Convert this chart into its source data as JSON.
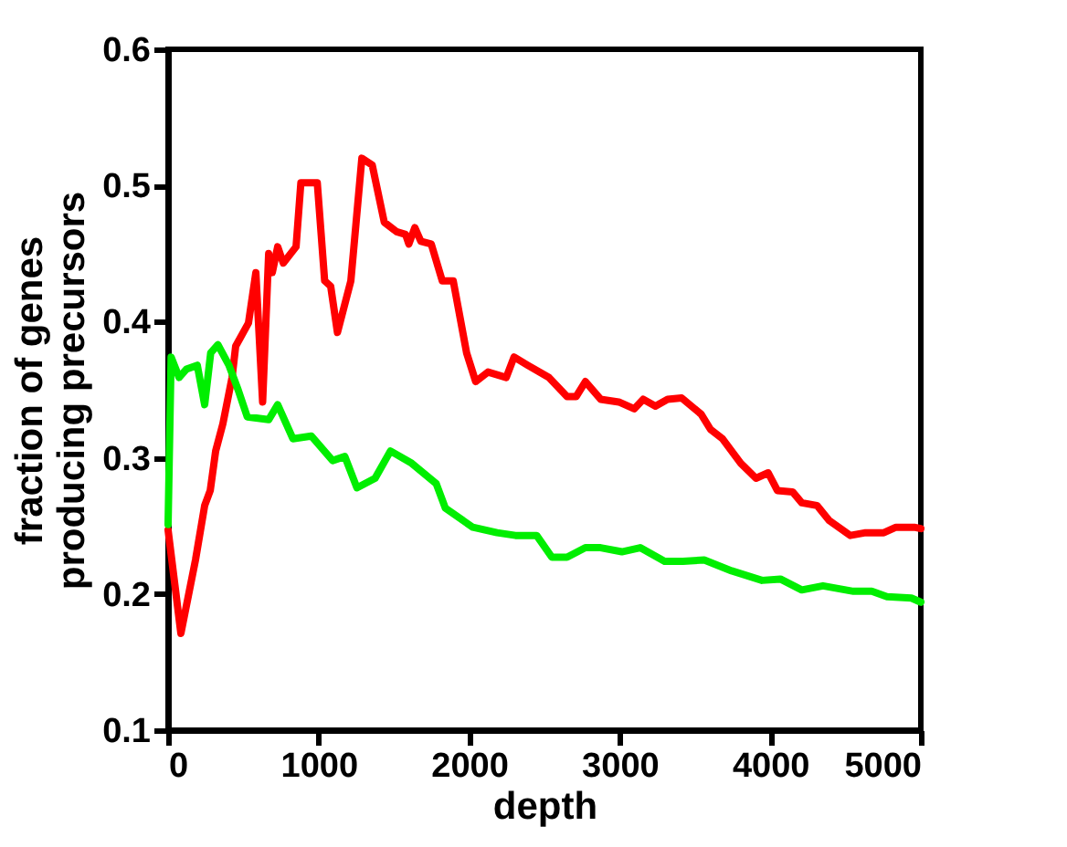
{
  "chart_data": {
    "type": "line",
    "xlabel": "depth",
    "ylabel": "fraction of genes\nproducing precursors",
    "xlim": [
      0,
      5000
    ],
    "xticks": [
      0,
      1000,
      2000,
      3000,
      4000,
      5000
    ],
    "ylim": [
      0.1,
      0.6
    ],
    "yticks": [
      0.1,
      0.2,
      0.3,
      0.4,
      0.5,
      0.6
    ],
    "grid": false,
    "line_style": "solid",
    "marker": "none",
    "series": [
      {
        "color": "#ff0000",
        "x": [
          0,
          85,
          182,
          243,
          280,
          316,
          364,
          425,
          449,
          534,
          583,
          628,
          668,
          692,
          728,
          765,
          850,
          882,
          991,
          1040,
          1080,
          1125,
          1214,
          1287,
          1356,
          1436,
          1518,
          1578,
          1599,
          1639,
          1679,
          1748,
          1821,
          1894,
          1983,
          2043,
          2125,
          2246,
          2298,
          2388,
          2529,
          2650,
          2711,
          2772,
          2873,
          2994,
          3096,
          3156,
          3237,
          3318,
          3411,
          3541,
          3602,
          3682,
          3804,
          3905,
          3986,
          4047,
          4148,
          4209,
          4310,
          4391,
          4532,
          4633,
          4754,
          4835,
          4956,
          5000
        ],
        "values": [
          0.247,
          0.171,
          0.225,
          0.265,
          0.276,
          0.305,
          0.325,
          0.359,
          0.382,
          0.399,
          0.436,
          0.341,
          0.45,
          0.436,
          0.455,
          0.443,
          0.455,
          0.502,
          0.502,
          0.43,
          0.426,
          0.392,
          0.43,
          0.52,
          0.515,
          0.473,
          0.466,
          0.464,
          0.457,
          0.469,
          0.459,
          0.457,
          0.43,
          0.43,
          0.377,
          0.356,
          0.363,
          0.359,
          0.374,
          0.368,
          0.359,
          0.345,
          0.345,
          0.356,
          0.343,
          0.341,
          0.336,
          0.343,
          0.338,
          0.343,
          0.344,
          0.332,
          0.321,
          0.314,
          0.296,
          0.285,
          0.289,
          0.276,
          0.275,
          0.267,
          0.265,
          0.254,
          0.243,
          0.245,
          0.245,
          0.249,
          0.249,
          0.248
        ]
      },
      {
        "color": "#00ee00",
        "x": [
          0,
          20,
          73,
          121,
          194,
          243,
          283,
          331,
          404,
          465,
          526,
          668,
          728,
          829,
          951,
          1093,
          1174,
          1254,
          1375,
          1477,
          1618,
          1781,
          1842,
          2024,
          2185,
          2307,
          2408,
          2448,
          2549,
          2650,
          2772,
          2873,
          3014,
          3136,
          3298,
          3420,
          3561,
          3743,
          3945,
          4067,
          4209,
          4350,
          4552,
          4674,
          4775,
          4937,
          5000
        ],
        "values": [
          0.251,
          0.374,
          0.359,
          0.365,
          0.368,
          0.339,
          0.377,
          0.383,
          0.368,
          0.35,
          0.33,
          0.328,
          0.339,
          0.314,
          0.316,
          0.298,
          0.301,
          0.278,
          0.285,
          0.305,
          0.296,
          0.281,
          0.263,
          0.249,
          0.245,
          0.243,
          0.243,
          0.243,
          0.227,
          0.227,
          0.234,
          0.234,
          0.231,
          0.234,
          0.224,
          0.224,
          0.225,
          0.217,
          0.21,
          0.211,
          0.203,
          0.206,
          0.202,
          0.202,
          0.198,
          0.197,
          0.194
        ]
      }
    ]
  }
}
